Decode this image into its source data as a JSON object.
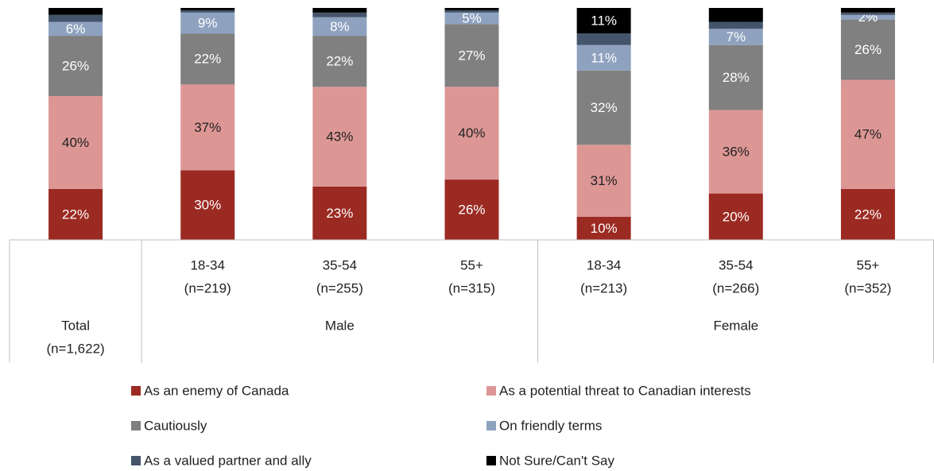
{
  "chart_data": {
    "type": "stacked_bar",
    "categories": [
      "Total",
      "18-34",
      "35-54",
      "55+",
      "18-34",
      "35-54",
      "55+"
    ],
    "category_notes": [
      "(n=1,622)",
      "(n=219)",
      "(n=255)",
      "(n=315)",
      "(n=213)",
      "(n=266)",
      "(n=352)"
    ],
    "category_group": [
      null,
      "Male",
      "Male",
      "Male",
      "Female",
      "Female",
      "Female"
    ],
    "ylim": [
      0,
      100
    ],
    "series": [
      {
        "name": "As an enemy of Canada",
        "color": "#9b2a22",
        "label_color": "#ffffff",
        "values": [
          22,
          30,
          23,
          26,
          10,
          20,
          22
        ],
        "value_labels": [
          "22%",
          "30%",
          "23%",
          "26%",
          "10%",
          "20%",
          "22%"
        ]
      },
      {
        "name": "As a potential threat to Canadian interests",
        "color": "#dc9795",
        "label_color": "#222222",
        "values": [
          40,
          37,
          43,
          40,
          31,
          36,
          47
        ],
        "value_labels": [
          "40%",
          "37%",
          "43%",
          "40%",
          "31%",
          "36%",
          "47%"
        ]
      },
      {
        "name": "Cautiously",
        "color": "#808080",
        "label_color": "#ffffff",
        "values": [
          26,
          22,
          22,
          27,
          32,
          28,
          26
        ],
        "value_labels": [
          "26%",
          "22%",
          "22%",
          "27%",
          "32%",
          "28%",
          "26%"
        ]
      },
      {
        "name": "On friendly terms",
        "color": "#8ea2bf",
        "label_color": "#ffffff",
        "values": [
          6,
          9,
          8,
          5,
          11,
          7,
          2
        ],
        "value_labels": [
          "6%",
          "9%",
          "8%",
          "5%",
          "11%",
          "7%",
          "2%"
        ]
      },
      {
        "name": "As a valued partner and ally",
        "color": "#44546a",
        "label_color": "#ffffff",
        "values": [
          3,
          1,
          2,
          1,
          5,
          3,
          1
        ],
        "value_labels": [
          null,
          null,
          null,
          null,
          null,
          null,
          null
        ]
      },
      {
        "name": "Not Sure/Can't Say",
        "color": "#000000",
        "label_color": "#ffffff",
        "values": [
          3,
          1,
          2,
          1,
          11,
          6,
          2
        ],
        "value_labels": [
          null,
          null,
          null,
          null,
          "11%",
          null,
          null
        ]
      }
    ]
  }
}
